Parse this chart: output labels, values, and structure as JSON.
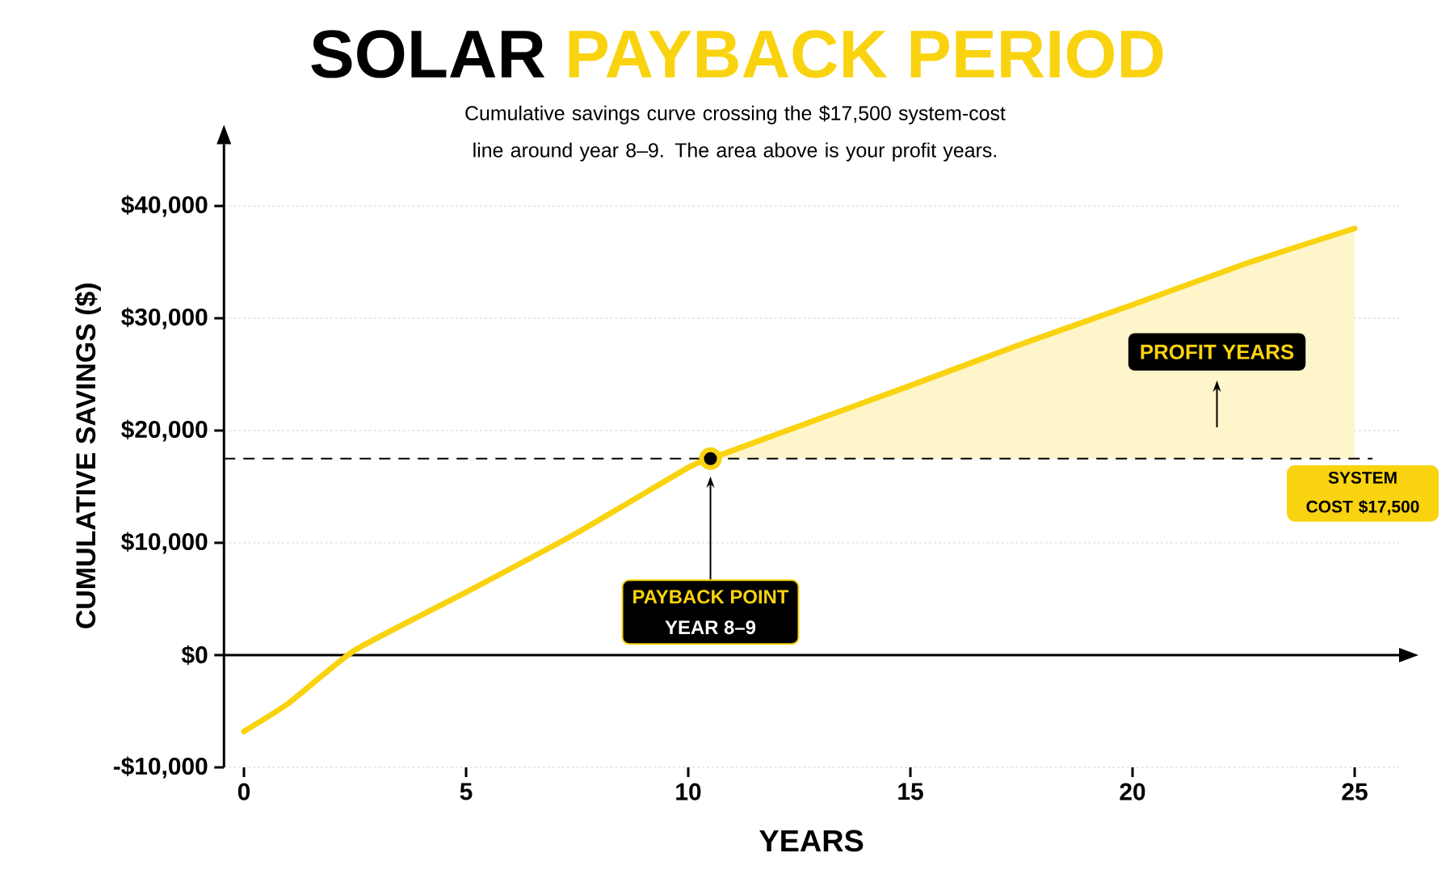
{
  "chart_data": {
    "type": "line",
    "title": "SOLAR **PAYBACK PERIOD**",
    "subtitle": "Cumulative savings curve crossing the $17,500 system-cost line around year 8–9. The area above is your profit years.",
    "xlabel": "YEARS",
    "ylabel": "CUMULATIVE SAVINGS ($)",
    "x": [
      0,
      1,
      2.5,
      5,
      7.5,
      10,
      10.5,
      12.5,
      15,
      17.5,
      20,
      22.5,
      25
    ],
    "series": [
      {
        "color": "#f9d30f",
        "values": [
          -6800,
          -4300,
          450,
          5600,
          10900,
          16700,
          17500,
          20400,
          24000,
          27700,
          31200,
          34800,
          38000
        ],
        "lower": [
          null,
          null,
          null,
          null,
          null,
          null,
          17500,
          17500,
          17500,
          17500,
          17500,
          17500,
          17500
        ],
        "upper": [
          null,
          null,
          null,
          null,
          null,
          null,
          17500,
          20400,
          24000,
          27700,
          31200,
          34800,
          38000
        ]
      },
      {
        "type": "scatter",
        "color": "#f9d30f",
        "x": [
          10.5
        ],
        "values": [
          17500
        ]
      }
    ],
    "xlim": [
      -0.45,
      26
    ],
    "ylim": [
      -10000,
      45500
    ],
    "xticks": [
      0,
      5,
      10,
      15,
      20,
      25
    ],
    "yticks": [
      {
        "value": -10000,
        "label": "-$10,000"
      },
      {
        "value": 0,
        "label": "$0"
      },
      {
        "value": 10000,
        "label": "$10,000"
      },
      {
        "value": 20000,
        "label": "$20,000"
      },
      {
        "value": 30000,
        "label": "$30,000"
      },
      {
        "value": 40000,
        "label": "$40,000"
      }
    ],
    "grid": "y",
    "marker": "none",
    "line_style": "solid",
    "ref_lines": [
      {
        "axis": "y",
        "value": 17500,
        "label": "SYSTEM COST $17,500",
        "line_style": "dashed",
        "color": "#000000"
      }
    ],
    "annotations": [
      "PAYBACK POINT",
      "YEAR 8–9",
      "PROFIT YEARS"
    ]
  }
}
